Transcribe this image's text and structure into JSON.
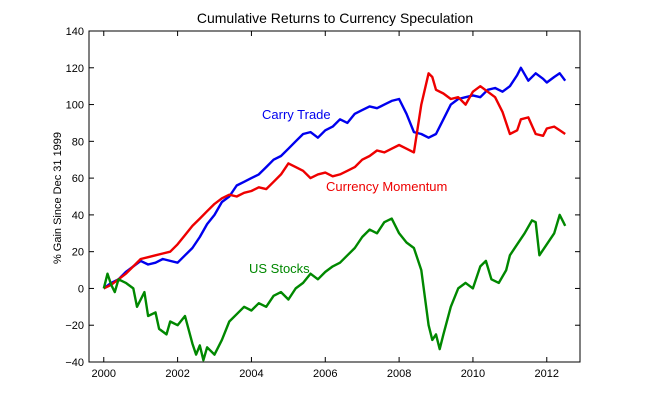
{
  "chart_data": {
    "type": "line",
    "title": "Cumulative Returns to Currency Speculation",
    "ylabel": "% Gain Since Dec 31 1999",
    "xlabel": "",
    "xlim": [
      1999.6,
      2012.9
    ],
    "ylim": [
      -40,
      140
    ],
    "xticks": [
      2000,
      2002,
      2004,
      2006,
      2008,
      2010,
      2012
    ],
    "yticks": [
      -40,
      -20,
      0,
      20,
      40,
      60,
      80,
      100,
      120,
      140
    ],
    "grid": false,
    "legend": "inline labels",
    "series": [
      {
        "name": "Carry Trade",
        "color": "#0000ee",
        "x": [
          2000.0,
          2000.2,
          2000.4,
          2000.6,
          2000.8,
          2001.0,
          2001.2,
          2001.4,
          2001.6,
          2001.8,
          2002.0,
          2002.2,
          2002.4,
          2002.6,
          2002.8,
          2003.0,
          2003.2,
          2003.4,
          2003.6,
          2003.8,
          2004.0,
          2004.2,
          2004.4,
          2004.6,
          2004.8,
          2005.0,
          2005.2,
          2005.4,
          2005.6,
          2005.8,
          2006.0,
          2006.2,
          2006.4,
          2006.6,
          2006.8,
          2007.0,
          2007.2,
          2007.4,
          2007.6,
          2007.8,
          2008.0,
          2008.2,
          2008.4,
          2008.6,
          2008.8,
          2009.0,
          2009.2,
          2009.4,
          2009.6,
          2009.8,
          2010.0,
          2010.2,
          2010.4,
          2010.6,
          2010.8,
          2011.0,
          2011.2,
          2011.3,
          2011.5,
          2011.7,
          2011.9,
          2012.0,
          2012.2,
          2012.35,
          2012.5
        ],
        "values": [
          0,
          3,
          5,
          9,
          12,
          15,
          13,
          14,
          16,
          15,
          14,
          18,
          22,
          28,
          35,
          40,
          47,
          50,
          56,
          58,
          60,
          62,
          66,
          70,
          72,
          76,
          80,
          84,
          85,
          82,
          86,
          88,
          92,
          90,
          95,
          97,
          99,
          98,
          100,
          102,
          103,
          95,
          85,
          84,
          82,
          84,
          92,
          100,
          103,
          104,
          105,
          104,
          108,
          109,
          107,
          110,
          116,
          120,
          113,
          117,
          114,
          112,
          115,
          117,
          113
        ]
      },
      {
        "name": "Currency Momentum",
        "color": "#ee0000",
        "x": [
          2000.0,
          2000.2,
          2000.4,
          2000.6,
          2000.8,
          2001.0,
          2001.2,
          2001.4,
          2001.6,
          2001.8,
          2002.0,
          2002.2,
          2002.4,
          2002.6,
          2002.8,
          2003.0,
          2003.2,
          2003.4,
          2003.6,
          2003.8,
          2004.0,
          2004.2,
          2004.4,
          2004.6,
          2004.8,
          2005.0,
          2005.2,
          2005.4,
          2005.6,
          2005.8,
          2006.0,
          2006.2,
          2006.4,
          2006.6,
          2006.8,
          2007.0,
          2007.2,
          2007.4,
          2007.6,
          2007.8,
          2008.0,
          2008.2,
          2008.4,
          2008.6,
          2008.8,
          2008.9,
          2009.0,
          2009.2,
          2009.4,
          2009.6,
          2009.8,
          2010.0,
          2010.2,
          2010.4,
          2010.6,
          2010.8,
          2011.0,
          2011.2,
          2011.3,
          2011.5,
          2011.7,
          2011.9,
          2012.0,
          2012.2,
          2012.35,
          2012.5
        ],
        "values": [
          0,
          2,
          5,
          8,
          12,
          16,
          17,
          18,
          19,
          20,
          24,
          29,
          34,
          38,
          42,
          46,
          49,
          51,
          50,
          52,
          53,
          55,
          54,
          58,
          62,
          68,
          66,
          64,
          60,
          62,
          63,
          61,
          62,
          64,
          66,
          70,
          72,
          75,
          74,
          76,
          78,
          76,
          74,
          100,
          117,
          115,
          108,
          106,
          103,
          104,
          100,
          107,
          110,
          107,
          104,
          96,
          84,
          86,
          92,
          93,
          84,
          83,
          87,
          88,
          86,
          84
        ]
      },
      {
        "name": "US Stocks",
        "color": "#008800",
        "x": [
          2000.0,
          2000.1,
          2000.2,
          2000.3,
          2000.4,
          2000.6,
          2000.8,
          2000.9,
          2001.0,
          2001.1,
          2001.2,
          2001.4,
          2001.5,
          2001.7,
          2001.8,
          2002.0,
          2002.2,
          2002.4,
          2002.5,
          2002.6,
          2002.7,
          2002.8,
          2003.0,
          2003.2,
          2003.4,
          2003.6,
          2003.8,
          2004.0,
          2004.2,
          2004.4,
          2004.6,
          2004.8,
          2005.0,
          2005.2,
          2005.4,
          2005.6,
          2005.8,
          2006.0,
          2006.2,
          2006.4,
          2006.6,
          2006.8,
          2007.0,
          2007.2,
          2007.4,
          2007.6,
          2007.8,
          2008.0,
          2008.2,
          2008.4,
          2008.6,
          2008.8,
          2008.9,
          2009.0,
          2009.1,
          2009.2,
          2009.4,
          2009.6,
          2009.8,
          2010.0,
          2010.2,
          2010.35,
          2010.5,
          2010.7,
          2010.9,
          2011.0,
          2011.2,
          2011.4,
          2011.6,
          2011.7,
          2011.8,
          2012.0,
          2012.2,
          2012.35,
          2012.45,
          2012.5
        ],
        "values": [
          0,
          8,
          2,
          -2,
          5,
          3,
          0,
          -10,
          -6,
          -2,
          -15,
          -13,
          -22,
          -25,
          -18,
          -20,
          -15,
          -30,
          -36,
          -31,
          -39,
          -32,
          -36,
          -28,
          -18,
          -14,
          -10,
          -12,
          -8,
          -10,
          -4,
          -2,
          -6,
          0,
          3,
          8,
          5,
          9,
          12,
          14,
          18,
          22,
          28,
          32,
          30,
          36,
          38,
          30,
          25,
          22,
          10,
          -20,
          -28,
          -25,
          -33,
          -25,
          -10,
          0,
          3,
          0,
          12,
          15,
          5,
          3,
          10,
          18,
          24,
          30,
          37,
          36,
          18,
          24,
          30,
          40,
          36,
          34
        ]
      }
    ]
  }
}
